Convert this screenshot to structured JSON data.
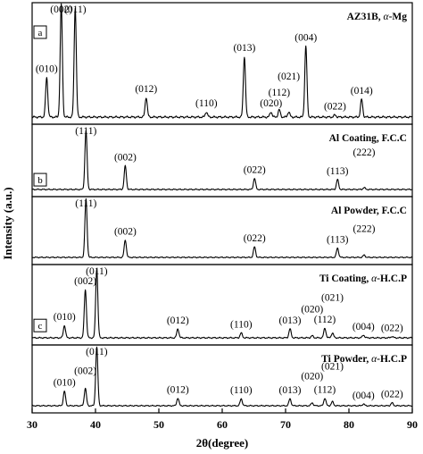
{
  "chart_data": {
    "type": "line",
    "xlabel": "2θ(degree)",
    "ylabel": "Intensity (a.u.)",
    "xlim": [
      30,
      90
    ],
    "xticks": [
      30,
      40,
      50,
      60,
      70,
      80,
      90
    ],
    "grid": false,
    "panels": [
      {
        "letter": "a",
        "title_main": "AZ31B, ",
        "title_italic": "α",
        "title_tail": "-Mg",
        "peaks": [
          {
            "x": 32.3,
            "h": 0.38,
            "label": "(010)"
          },
          {
            "x": 34.6,
            "h": 1.08,
            "label": "(002)"
          },
          {
            "x": 36.8,
            "h": 1.05,
            "label": "(011)"
          },
          {
            "x": 48.0,
            "h": 0.19,
            "label": "(012)"
          },
          {
            "x": 57.5,
            "h": 0.05,
            "label": "(110)"
          },
          {
            "x": 63.5,
            "h": 0.58,
            "label": "(013)"
          },
          {
            "x": 67.7,
            "h": 0.05,
            "label": "(020)"
          },
          {
            "x": 69.0,
            "h": 0.07,
            "label": "(112)"
          },
          {
            "x": 70.5,
            "h": 0.05,
            "label": "(021)"
          },
          {
            "x": 73.2,
            "h": 0.68,
            "label": "(004)"
          },
          {
            "x": 77.8,
            "h": 0.02,
            "label": "(022)"
          },
          {
            "x": 82.0,
            "h": 0.17,
            "label": "(014)"
          }
        ]
      },
      {
        "letter": "b",
        "title_main": "Al Coating, F.C.C",
        "title_italic": "",
        "title_tail": "",
        "peaks": [
          {
            "x": 38.5,
            "h": 0.95,
            "label": "(111)"
          },
          {
            "x": 44.7,
            "h": 0.38,
            "label": "(002)"
          },
          {
            "x": 65.1,
            "h": 0.18,
            "label": "(022)"
          },
          {
            "x": 78.2,
            "h": 0.16,
            "label": "(113)"
          },
          {
            "x": 82.4,
            "h": 0.03,
            "label": "(222)"
          }
        ]
      },
      {
        "letter": "",
        "title_main": "Al Powder, F.C.C",
        "title_italic": "",
        "title_tail": "",
        "peaks": [
          {
            "x": 38.5,
            "h": 1.0,
            "label": "(111)"
          },
          {
            "x": 44.7,
            "h": 0.3,
            "label": "(002)"
          },
          {
            "x": 65.1,
            "h": 0.18,
            "label": "(022)"
          },
          {
            "x": 78.2,
            "h": 0.16,
            "label": "(113)"
          },
          {
            "x": 82.4,
            "h": 0.04,
            "label": "(222)"
          }
        ]
      },
      {
        "letter": "c",
        "title_main": "Ti Coating, ",
        "title_italic": "α",
        "title_tail": "-H.C.P",
        "peaks": [
          {
            "x": 35.1,
            "h": 0.18,
            "label": "(010)"
          },
          {
            "x": 38.4,
            "h": 0.7,
            "label": "(002)"
          },
          {
            "x": 40.2,
            "h": 1.0,
            "label": "(011)"
          },
          {
            "x": 53.0,
            "h": 0.13,
            "label": "(012)"
          },
          {
            "x": 63.0,
            "h": 0.07,
            "label": "(110)"
          },
          {
            "x": 70.7,
            "h": 0.13,
            "label": "(013)"
          },
          {
            "x": 74.2,
            "h": 0.03,
            "label": "(020)"
          },
          {
            "x": 76.2,
            "h": 0.14,
            "label": "(112)"
          },
          {
            "x": 77.4,
            "h": 0.07,
            "label": "(021)"
          },
          {
            "x": 82.3,
            "h": 0.04,
            "label": "(004)"
          },
          {
            "x": 86.8,
            "h": 0.02,
            "label": "(022)"
          }
        ]
      },
      {
        "letter": "",
        "title_main": "Ti Powder, ",
        "title_italic": "α",
        "title_tail": "-H.C.P",
        "peaks": [
          {
            "x": 35.1,
            "h": 0.25,
            "label": "(010)"
          },
          {
            "x": 38.4,
            "h": 0.3,
            "label": "(002)"
          },
          {
            "x": 40.2,
            "h": 1.0,
            "label": "(011)"
          },
          {
            "x": 53.0,
            "h": 0.13,
            "label": "(012)"
          },
          {
            "x": 63.0,
            "h": 0.12,
            "label": "(110)"
          },
          {
            "x": 70.7,
            "h": 0.12,
            "label": "(013)"
          },
          {
            "x": 74.2,
            "h": 0.05,
            "label": "(020)"
          },
          {
            "x": 76.2,
            "h": 0.13,
            "label": "(112)"
          },
          {
            "x": 77.4,
            "h": 0.07,
            "label": "(021)"
          },
          {
            "x": 82.3,
            "h": 0.03,
            "label": "(004)"
          },
          {
            "x": 86.8,
            "h": 0.05,
            "label": "(022)"
          }
        ]
      }
    ]
  }
}
